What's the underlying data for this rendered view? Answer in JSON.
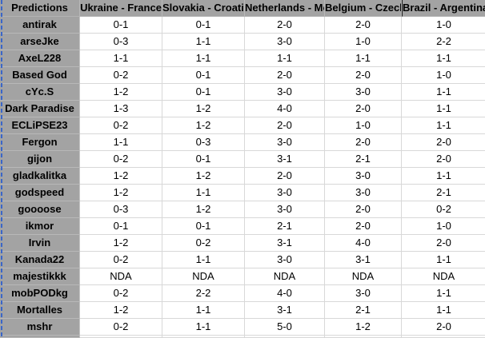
{
  "table": {
    "corner_label": "Predictions",
    "columns": [
      "Ukraine - France",
      "Slovakia - Croatia",
      "Netherlands - Montenegro",
      "Belgium - Czech Republic",
      "Brazil - Argentina"
    ],
    "rows": [
      {
        "name": "antirak",
        "predictions": [
          "0-1",
          "0-1",
          "2-0",
          "2-0",
          "1-0"
        ]
      },
      {
        "name": "arseJke",
        "predictions": [
          "0-3",
          "1-1",
          "3-0",
          "1-0",
          "2-2"
        ]
      },
      {
        "name": "AxeL228",
        "predictions": [
          "1-1",
          "1-1",
          "1-1",
          "1-1",
          "1-1"
        ]
      },
      {
        "name": "Based God",
        "predictions": [
          "0-2",
          "0-1",
          "2-0",
          "2-0",
          "1-0"
        ]
      },
      {
        "name": "cYc.S",
        "predictions": [
          "1-2",
          "0-1",
          "3-0",
          "3-0",
          "1-1"
        ]
      },
      {
        "name": "Dark Paradise",
        "predictions": [
          "1-3",
          "1-2",
          "4-0",
          "2-0",
          "1-1"
        ]
      },
      {
        "name": "ECLiPSE23",
        "predictions": [
          "0-2",
          "1-2",
          "2-0",
          "1-0",
          "1-1"
        ]
      },
      {
        "name": "Fergon",
        "predictions": [
          "1-1",
          "0-3",
          "3-0",
          "2-0",
          "2-0"
        ]
      },
      {
        "name": "gijon",
        "predictions": [
          "0-2",
          "0-1",
          "3-1",
          "2-1",
          "2-0"
        ]
      },
      {
        "name": "gladkalitka",
        "predictions": [
          "1-2",
          "1-2",
          "2-0",
          "3-0",
          "1-1"
        ]
      },
      {
        "name": "godspeed",
        "predictions": [
          "1-2",
          "1-1",
          "3-0",
          "3-0",
          "2-1"
        ]
      },
      {
        "name": "goooose",
        "predictions": [
          "0-3",
          "1-2",
          "3-0",
          "2-0",
          "0-2"
        ]
      },
      {
        "name": "ikmor",
        "predictions": [
          "0-1",
          "0-1",
          "2-1",
          "2-0",
          "1-0"
        ]
      },
      {
        "name": "Irvin",
        "predictions": [
          "1-2",
          "0-2",
          "3-1",
          "4-0",
          "2-0"
        ]
      },
      {
        "name": "Kanada22",
        "predictions": [
          "0-2",
          "1-1",
          "3-0",
          "3-1",
          "1-1"
        ]
      },
      {
        "name": "majestikkk",
        "predictions": [
          "NDA",
          "NDA",
          "NDA",
          "NDA",
          "NDA"
        ]
      },
      {
        "name": "mobPODkg",
        "predictions": [
          "0-2",
          "2-2",
          "4-0",
          "3-0",
          "1-1"
        ]
      },
      {
        "name": "Mortalles",
        "predictions": [
          "1-2",
          "1-1",
          "3-1",
          "2-1",
          "1-1"
        ]
      },
      {
        "name": "mshr",
        "predictions": [
          "0-2",
          "1-1",
          "5-0",
          "1-2",
          "2-0"
        ]
      }
    ],
    "missing_value_label": "NDA"
  },
  "colors": {
    "header_fill": "#a3a3a3",
    "gridline": "#d8d8d8",
    "page_break_blue": "#3a66c8",
    "active_cell_border": "#1a1a1a",
    "text": "#000000"
  }
}
